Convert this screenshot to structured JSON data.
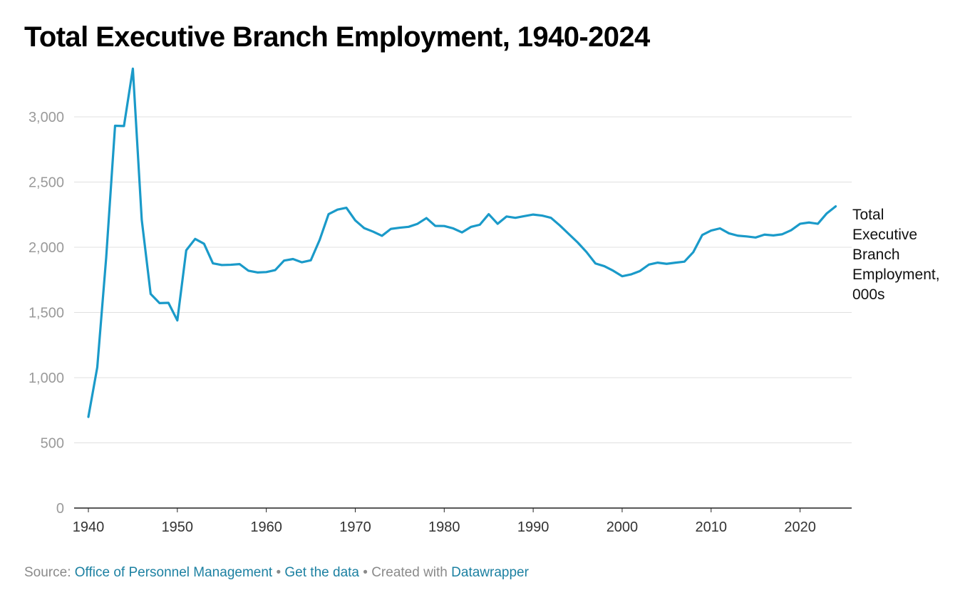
{
  "header": {
    "title": "Total Executive Branch Employment, 1940-2024"
  },
  "footer": {
    "source_prefix": "Source: ",
    "source_link": "Office of Personnel Management",
    "separator": " • ",
    "get_data_link": "Get the data",
    "created_with_prefix": "Created with ",
    "datawrapper_link": "Datawrapper"
  },
  "colors": {
    "line": "#1a9ac9",
    "grid": "#e0e0e0",
    "axis": "#222222",
    "link": "#1d81a2"
  },
  "chart_data": {
    "type": "line",
    "title": "Total Executive Branch Employment, 1940-2024",
    "xlabel": "",
    "ylabel": "",
    "xlim": [
      1940,
      2025
    ],
    "ylim": [
      0,
      3350
    ],
    "x_ticks": [
      1940,
      1950,
      1960,
      1970,
      1980,
      1990,
      2000,
      2010,
      2020
    ],
    "y_ticks": [
      0,
      500,
      1000,
      1500,
      2000,
      2500,
      3000
    ],
    "y_tick_labels": [
      "0",
      "500",
      "1,000",
      "1,500",
      "2,000",
      "2,500",
      "3,000"
    ],
    "x_tick_labels": [
      "1940",
      "1950",
      "1960",
      "1970",
      "1980",
      "1990",
      "2000",
      "2010",
      "2020"
    ],
    "grid": true,
    "legend": "none",
    "series": [
      {
        "name": "Total Executive Branch Employment, 000s",
        "label_lines": [
          "Total",
          "Executive",
          "Branch",
          "Employment,",
          "000s"
        ],
        "x": [
          1940,
          1941,
          1942,
          1943,
          1944,
          1945,
          1946,
          1947,
          1948,
          1949,
          1950,
          1951,
          1952,
          1953,
          1954,
          1955,
          1956,
          1957,
          1958,
          1959,
          1960,
          1961,
          1962,
          1963,
          1964,
          1965,
          1966,
          1967,
          1968,
          1969,
          1970,
          1971,
          1972,
          1973,
          1974,
          1975,
          1976,
          1977,
          1978,
          1979,
          1980,
          1981,
          1982,
          1983,
          1984,
          1985,
          1986,
          1987,
          1988,
          1989,
          1990,
          1991,
          1992,
          1993,
          1994,
          1995,
          1996,
          1997,
          1998,
          1999,
          2000,
          2001,
          2002,
          2003,
          2004,
          2005,
          2006,
          2007,
          2008,
          2009,
          2010,
          2011,
          2012,
          2013,
          2014,
          2015,
          2016,
          2017,
          2018,
          2019,
          2020,
          2021,
          2022,
          2023,
          2024
        ],
        "values": [
          699,
          1080,
          1919,
          2932,
          2930,
          3370,
          2210,
          1642,
          1572,
          1574,
          1439,
          1977,
          2064,
          2027,
          1877,
          1864,
          1866,
          1871,
          1820,
          1807,
          1810,
          1825,
          1898,
          1910,
          1885,
          1900,
          2057,
          2254,
          2289,
          2303,
          2206,
          2147,
          2120,
          2088,
          2141,
          2150,
          2157,
          2180,
          2224,
          2164,
          2163,
          2145,
          2114,
          2156,
          2173,
          2254,
          2180,
          2236,
          2226,
          2239,
          2251,
          2243,
          2226,
          2167,
          2102,
          2037,
          1963,
          1876,
          1855,
          1820,
          1778,
          1792,
          1818,
          1867,
          1882,
          1873,
          1882,
          1890,
          1963,
          2094,
          2128,
          2145,
          2107,
          2089,
          2083,
          2075,
          2097,
          2091,
          2100,
          2131,
          2180,
          2190,
          2180,
          2260,
          2314
        ]
      }
    ]
  }
}
